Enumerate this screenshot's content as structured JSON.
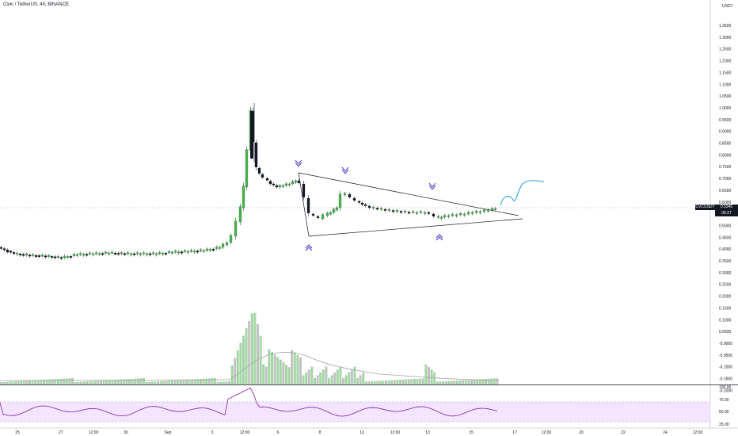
{
  "header": {
    "title": "Civic / TetherUS, 4h, BINANCE"
  },
  "quote": {
    "currency": "USDT"
  },
  "price_axis": {
    "ticks": [
      "1.3500",
      "1.3000",
      "1.2500",
      "1.2000",
      "1.1500",
      "1.1000",
      "1.0500",
      "1.0000",
      "0.9500",
      "0.9000",
      "0.8500",
      "0.8000",
      "0.7500",
      "0.7000",
      "0.6500",
      "0.6000",
      "0.5500",
      "0.5000",
      "0.4500",
      "0.4000",
      "0.3500",
      "0.3000",
      "0.2500",
      "0.2000",
      "0.1500",
      "0.1000",
      "0.0500",
      "-0.0000",
      "-0.0500",
      "-0.1000",
      "-0.1500",
      "-0.2000"
    ]
  },
  "last_price": {
    "symbol": "CVCUSDT",
    "value": "0.5345",
    "countdown": "06:27"
  },
  "rsi_axis": {
    "ticks": [
      "100.00",
      "75.00",
      "50.00",
      "25.00"
    ]
  },
  "time_axis": {
    "ticks": [
      "25",
      "27",
      "12:00",
      "30",
      "Sep",
      "3",
      "12:00",
      "6",
      "8",
      "10",
      "12:00",
      "13",
      "15",
      "17",
      "12:00",
      "20",
      "22",
      "24",
      "12:00"
    ]
  }
}
